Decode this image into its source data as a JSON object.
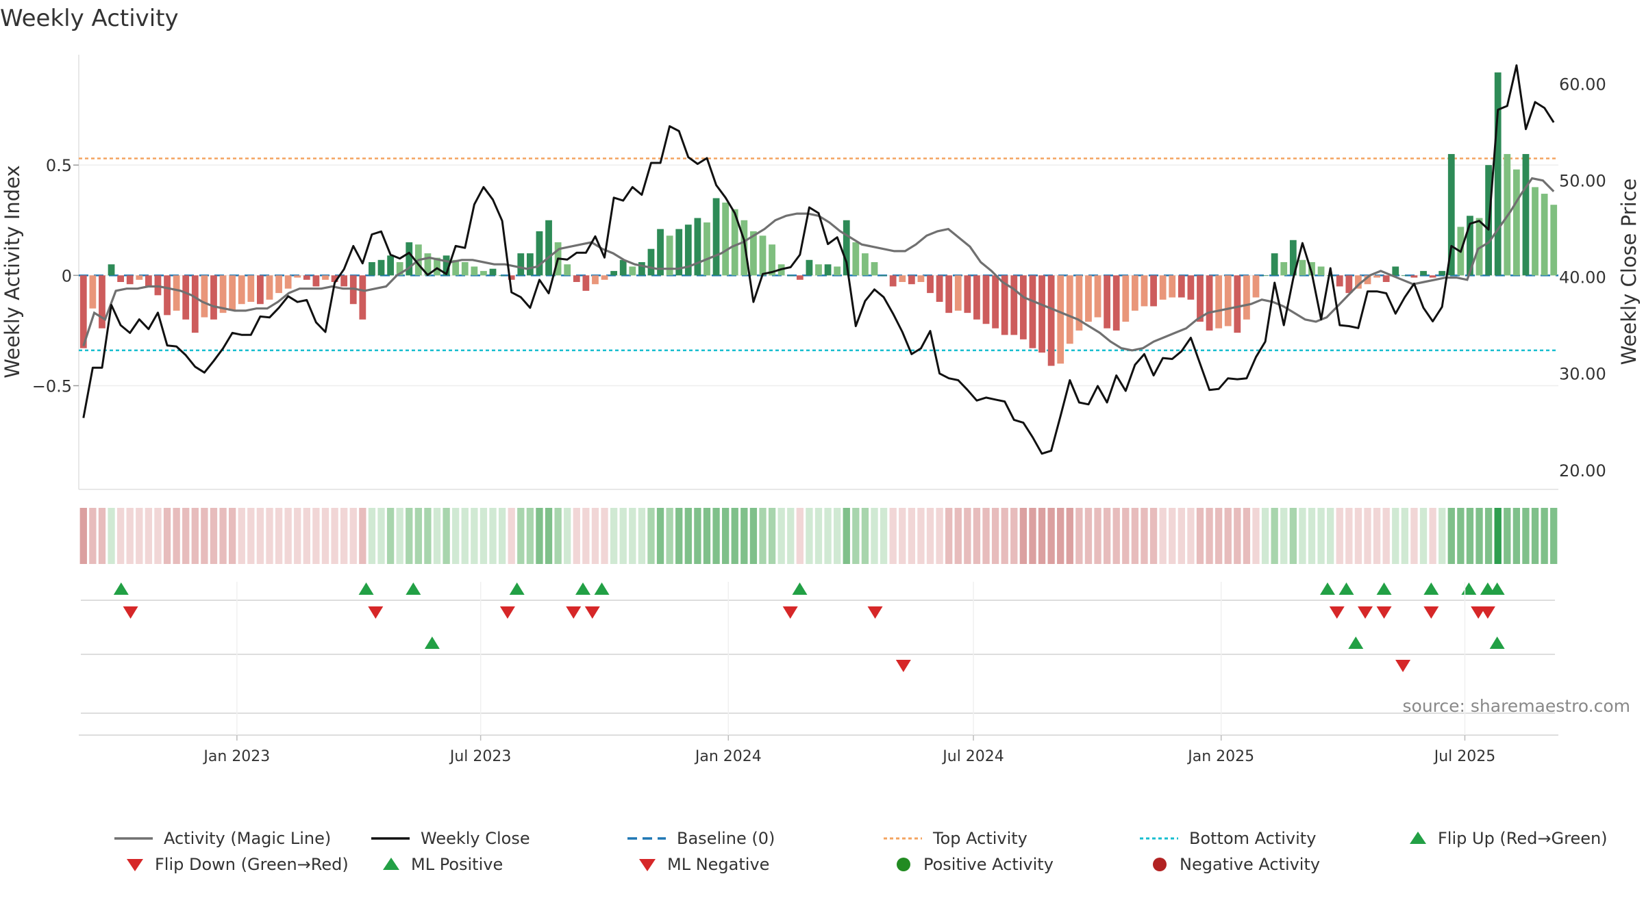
{
  "chart_data": {
    "type": "bar+line",
    "title": "Weekly Activity",
    "ylabel_left": "Weekly Activity Index",
    "ylabel_right": "Weekly Close Price",
    "source_note": "source: sharemaestro.com",
    "left_axis": {
      "ylim": [
        -0.97,
        1.0
      ],
      "ticks": [
        0.5,
        0,
        -0.5
      ],
      "tick_labels": [
        "0.5",
        "0",
        "−0.5"
      ]
    },
    "right_axis": {
      "ylim": [
        18.0,
        63.0
      ],
      "ticks": [
        60,
        50,
        40,
        30,
        20
      ],
      "tick_labels": [
        "60.00",
        "50.00",
        "40.00",
        "30.00",
        "20.00"
      ]
    },
    "x_axis": {
      "start": "2022-09-09",
      "end": "2025-09-05",
      "ticks": [
        "2023-01-01",
        "2023-07-01",
        "2024-01-01",
        "2024-07-01",
        "2025-01-01",
        "2025-07-01"
      ],
      "tick_labels": [
        "Jan 2023",
        "Jul 2023",
        "Jan 2024",
        "Jul 2024",
        "Jan 2025",
        "Jul 2025"
      ]
    },
    "reference_lines": {
      "baseline": 0,
      "top_activity": 0.53,
      "bottom_activity": -0.34
    },
    "colors": {
      "pos_strong": "#2e8b57",
      "pos_weak": "#7fbf7f",
      "neg_strong": "#cd5c5c",
      "neg_weak": "#e9967a",
      "magic_line": "#707070",
      "close_line": "#111111",
      "baseline": "#1f77b4",
      "top": "#f4a460",
      "bottom": "#17becf",
      "marker_up": "#22a045",
      "marker_down": "#d62728",
      "pos_dot": "#228b22",
      "neg_dot": "#b22222"
    },
    "series": [
      {
        "name": "Activity bars",
        "keys": [
          [
            -0.33,
            -0.15,
            -0.24,
            0.05
          ],
          [
            -0.03,
            -0.04,
            -0.02,
            -0.05,
            -0.09,
            -0.18,
            -0.16,
            -0.2,
            -0.26,
            -0.19,
            -0.2,
            -0.17
          ],
          [
            -0.16,
            -0.13,
            -0.12,
            -0.13,
            -0.11,
            -0.08,
            -0.06,
            -0.01,
            -0.02,
            -0.05,
            -0.02,
            -0.03,
            -0.05,
            -0.13,
            -0.2
          ],
          [
            0.06,
            0.07,
            0.09,
            0.06,
            0.15,
            0.14,
            0.1,
            0.08,
            0.09,
            0.07,
            0.06,
            0.04
          ],
          [
            0.02,
            0.03,
            0.0,
            -0.02,
            0.1,
            0.1,
            0.2,
            0.25,
            0.15,
            0.05
          ],
          [
            -0.03,
            -0.07,
            -0.04,
            -0.02,
            0.02,
            0.07,
            0.04,
            0.06,
            0.12,
            0.21
          ],
          [
            0.18,
            0.21,
            0.23,
            0.26,
            0.24,
            0.35,
            0.33,
            0.3,
            0.25
          ],
          [
            0.2,
            0.18,
            0.14,
            0.05,
            0.0,
            -0.02,
            0.07,
            0.05,
            0.05,
            0.04,
            0.25
          ],
          [
            0.15,
            0.1,
            0.06,
            0.0,
            -0.05,
            -0.03,
            -0.04,
            -0.03,
            -0.08,
            -0.12,
            -0.17,
            -0.16
          ],
          [
            -0.17,
            -0.2,
            -0.22,
            -0.24,
            -0.27,
            -0.27,
            -0.29,
            -0.33,
            -0.35,
            -0.41,
            -0.4,
            -0.31
          ],
          [
            -0.25,
            -0.21,
            -0.19,
            -0.24,
            -0.25,
            -0.21,
            -0.16,
            -0.14,
            -0.14,
            -0.11,
            -0.1,
            -0.1
          ],
          [
            -0.11,
            -0.21,
            -0.25,
            -0.24,
            -0.23,
            -0.26,
            -0.2,
            -0.1,
            0.0,
            0.1,
            0.06,
            0.16,
            0.07,
            0.06
          ],
          [
            0.04,
            0.0,
            -0.05,
            -0.08,
            -0.06,
            -0.04,
            -0.01,
            -0.03,
            0.04,
            0.0,
            -0.01,
            0.02,
            -0.01,
            0.02
          ],
          [
            0.55,
            0.22,
            0.27,
            0.26,
            0.5,
            0.92,
            0.55,
            0.48,
            0.55,
            0.4,
            0.37,
            0.32
          ]
        ]
      },
      {
        "name": "Activity (Magic Line)",
        "keys": [
          [
            -0.32,
            -0.17,
            -0.2,
            -0.07,
            -0.06,
            -0.06,
            -0.05,
            -0.05,
            -0.06,
            -0.07,
            -0.09,
            -0.12,
            -0.14,
            -0.15,
            -0.16,
            -0.16
          ],
          [
            -0.15,
            -0.15,
            -0.12,
            -0.08,
            -0.06,
            -0.06,
            -0.06,
            -0.05,
            -0.06,
            -0.06,
            -0.07,
            -0.06,
            -0.05,
            0.0,
            0.03,
            0.07
          ],
          [
            0.08,
            0.07,
            0.06,
            0.07,
            0.07,
            0.06,
            0.05,
            0.05,
            0.04,
            0.03,
            0.04,
            0.08,
            0.12,
            0.13,
            0.14,
            0.15,
            0.12,
            0.1
          ],
          [
            0.07,
            0.05,
            0.04,
            0.03,
            0.03,
            0.03,
            0.04,
            0.06,
            0.08,
            0.1,
            0.13,
            0.15,
            0.18,
            0.21,
            0.25,
            0.27,
            0.28,
            0.28
          ],
          [
            0.27,
            0.24,
            0.2,
            0.17,
            0.14,
            0.13,
            0.12,
            0.11,
            0.11,
            0.14,
            0.18,
            0.2,
            0.21,
            0.17,
            0.13
          ],
          [
            0.06,
            0.02,
            -0.03,
            -0.06,
            -0.1,
            -0.12,
            -0.14,
            -0.16,
            -0.18,
            -0.2,
            -0.23,
            -0.26,
            -0.3,
            -0.33,
            -0.34,
            -0.33
          ],
          [
            -0.3,
            -0.28,
            -0.26,
            -0.24,
            -0.2,
            -0.17,
            -0.16,
            -0.15,
            -0.14,
            -0.13,
            -0.11,
            -0.12,
            -0.14,
            -0.17,
            -0.2,
            -0.21
          ],
          [
            -0.19,
            -0.14,
            -0.09,
            -0.04,
            0.0,
            0.02,
            0.0,
            -0.02,
            -0.04,
            -0.03,
            -0.02,
            -0.01,
            -0.01,
            -0.02
          ],
          [
            0.12,
            0.15,
            0.22,
            0.29,
            0.37,
            0.44,
            0.43,
            0.38
          ]
        ]
      },
      {
        "name": "Weekly Close",
        "keys": [
          [
            25.4,
            30.6,
            30.6,
            37.1,
            35.0,
            34.2,
            35.6,
            34.6,
            36.3,
            32.9,
            32.8,
            31.9,
            30.7,
            30.1,
            31.3,
            32.6,
            34.2,
            34.0,
            34.0
          ],
          [
            35.9,
            35.8,
            36.8,
            38.0,
            37.4,
            37.6,
            35.3,
            34.3,
            39.4,
            40.8,
            43.2,
            41.4,
            44.4,
            44.7,
            42.3,
            41.9,
            42.5,
            41.3
          ],
          [
            40.2,
            40.9,
            40.3,
            43.2,
            43.0,
            47.5,
            49.3,
            48.0,
            45.8,
            38.4,
            37.9,
            36.8,
            39.7,
            38.3,
            41.9,
            41.8,
            42.5,
            42.5
          ],
          [
            44.2,
            42.0,
            48.2,
            47.9,
            49.3,
            48.5,
            51.8,
            51.8,
            55.6,
            55.1,
            52.4,
            51.7,
            52.3,
            49.5,
            48.2,
            46.6,
            43.8,
            37.4
          ],
          [
            40.3,
            40.5,
            40.8,
            41.0,
            42.3,
            47.2,
            46.6,
            43.4,
            44.1,
            41.5,
            34.9,
            37.5,
            38.7,
            37.9,
            36.2,
            34.3,
            32.0,
            32.6
          ],
          [
            34.4,
            30.0,
            29.5,
            29.3,
            28.3,
            27.2,
            27.5,
            27.3,
            27.1,
            25.2,
            24.9,
            23.4,
            21.7,
            22.0,
            25.6,
            29.3,
            27.0,
            26.8
          ],
          [
            28.7,
            27.0,
            29.8,
            28.2,
            30.9,
            32.0,
            29.8,
            31.6,
            31.5,
            32.3,
            33.7,
            31.0,
            28.3,
            28.4,
            29.5,
            29.4,
            29.5
          ],
          [
            31.7,
            33.3,
            39.4,
            35.0,
            39.8,
            43.5,
            40.4,
            35.6,
            40.9,
            35.0,
            34.9,
            34.7,
            38.5,
            38.5,
            38.3,
            36.2,
            37.9,
            39.3
          ],
          [
            36.8,
            35.4,
            36.9,
            43.2,
            42.6,
            45.5,
            45.8,
            44.9,
            57.3,
            57.7,
            61.9,
            55.3,
            58.1,
            57.5,
            56.0
          ]
        ]
      },
      {
        "name": "Flip Up (Red→Green)",
        "dates": [
          "2022-10-07",
          "2023-04-07",
          "2023-05-12",
          "2023-07-28",
          "2023-09-15",
          "2023-09-29",
          "2024-02-23",
          "2025-03-21",
          "2025-04-04",
          "2025-05-02",
          "2025-06-06",
          "2025-07-04",
          "2025-07-18",
          "2025-07-25"
        ]
      },
      {
        "name": "Flip Down (Green→Red)",
        "dates": [
          "2022-10-14",
          "2023-04-14",
          "2023-07-21",
          "2023-09-08",
          "2023-09-22",
          "2024-02-16",
          "2024-04-19",
          "2025-03-28",
          "2025-04-18",
          "2025-05-02",
          "2025-06-06",
          "2025-07-11",
          "2025-07-18"
        ]
      },
      {
        "name": "ML Positive",
        "dates": [
          "2023-05-26",
          "2025-04-11",
          "2025-07-25"
        ]
      },
      {
        "name": "ML Negative",
        "dates": [
          "2024-05-10",
          "2025-05-16"
        ]
      }
    ],
    "legend": {
      "row1": [
        "Activity (Magic Line)",
        "Weekly Close",
        "Baseline (0)",
        "Top Activity",
        "Bottom Activity",
        "Flip Up (Red→Green)"
      ],
      "row2": [
        "Flip Down (Green→Red)",
        "ML Positive",
        "ML Negative",
        "Positive Activity",
        "Negative Activity"
      ]
    }
  }
}
